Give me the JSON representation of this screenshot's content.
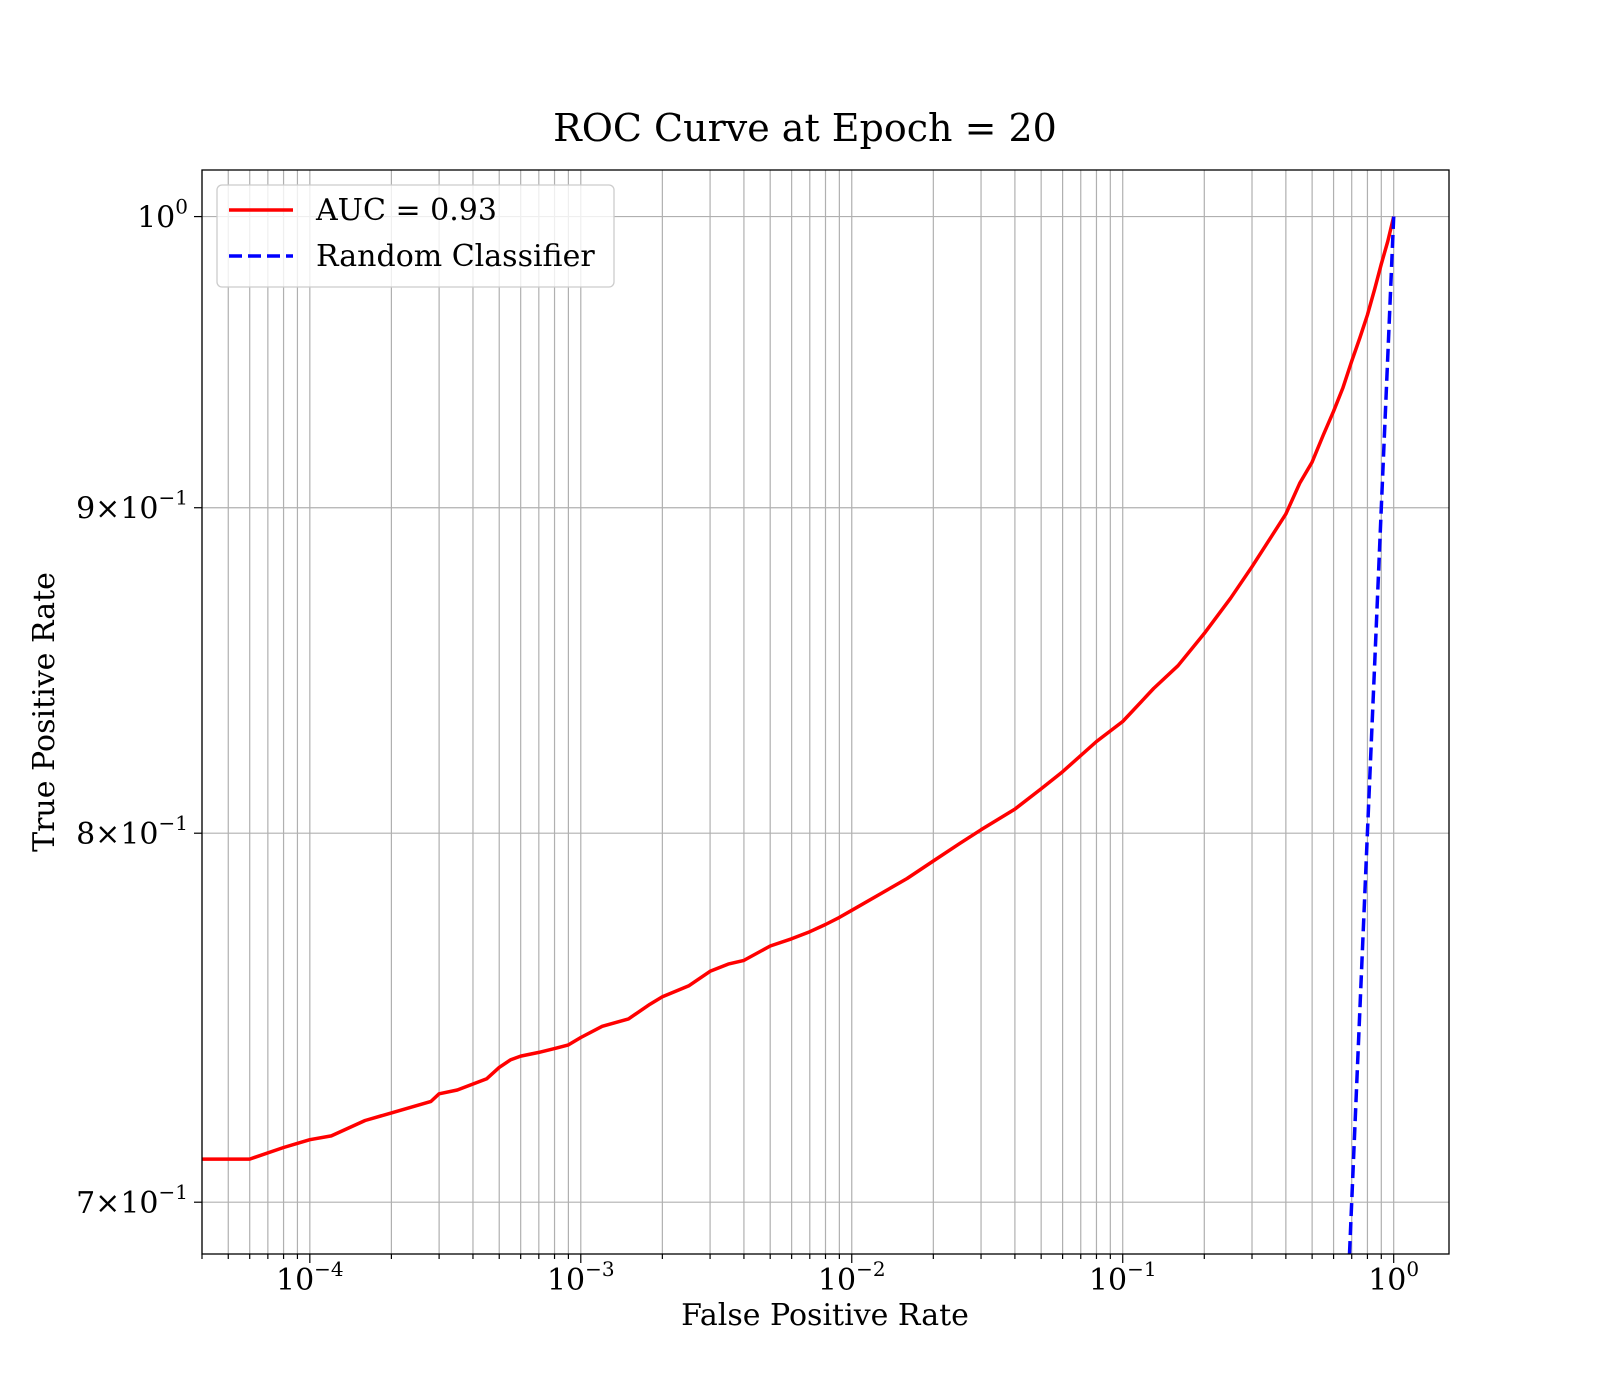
{
  "chart_data": {
    "type": "line",
    "title": "ROC Curve at Epoch = 20",
    "xlabel": "False Positive Rate",
    "ylabel": "True Positive Rate",
    "xscale": "log",
    "yscale": "log",
    "xlim": [
      4e-05,
      1.6
    ],
    "ylim": [
      0.687,
      1.017
    ],
    "grid": "major and minor",
    "legend_position": "upper-left",
    "x_ticks": [
      {
        "base": "10",
        "exp": "−4",
        "value": 0.0001
      },
      {
        "base": "10",
        "exp": "−3",
        "value": 0.001
      },
      {
        "base": "10",
        "exp": "−2",
        "value": 0.01
      },
      {
        "base": "10",
        "exp": "−1",
        "value": 0.1
      },
      {
        "base": "10",
        "exp": "0",
        "value": 1
      }
    ],
    "y_ticks": [
      {
        "mant": "",
        "base": "10",
        "exp": "0",
        "value": 1.0
      },
      {
        "mant": "9",
        "base": "10",
        "exp": "−1",
        "value": 0.9
      },
      {
        "mant": "8",
        "base": "10",
        "exp": "−1",
        "value": 0.8
      },
      {
        "mant": "7",
        "base": "10",
        "exp": "−1",
        "value": 0.7
      }
    ],
    "series": [
      {
        "name": "AUC = 0.93",
        "color": "#ff0000",
        "style": "solid",
        "x": [
          4e-05,
          6e-05,
          8e-05,
          0.0001,
          0.00012,
          0.00016,
          0.0002,
          0.00028,
          0.0003,
          0.00035,
          0.00045,
          0.0005,
          0.00055,
          0.0006,
          0.0007,
          0.0008,
          0.0009,
          0.001,
          0.0012,
          0.0015,
          0.0018,
          0.002,
          0.0025,
          0.003,
          0.0035,
          0.004,
          0.005,
          0.006,
          0.007,
          0.008,
          0.009,
          0.01,
          0.013,
          0.016,
          0.02,
          0.025,
          0.03,
          0.04,
          0.05,
          0.06,
          0.08,
          0.1,
          0.13,
          0.16,
          0.2,
          0.25,
          0.3,
          0.35,
          0.4,
          0.45,
          0.5,
          0.55,
          0.6,
          0.65,
          0.7,
          0.75,
          0.8,
          0.85,
          0.9,
          0.95,
          1.0
        ],
        "y": [
          0.711,
          0.711,
          0.714,
          0.716,
          0.717,
          0.721,
          0.723,
          0.726,
          0.728,
          0.729,
          0.732,
          0.735,
          0.737,
          0.738,
          0.739,
          0.74,
          0.741,
          0.743,
          0.746,
          0.748,
          0.752,
          0.754,
          0.757,
          0.761,
          0.763,
          0.764,
          0.768,
          0.77,
          0.772,
          0.774,
          0.776,
          0.778,
          0.783,
          0.787,
          0.792,
          0.797,
          0.801,
          0.807,
          0.813,
          0.818,
          0.827,
          0.833,
          0.843,
          0.85,
          0.86,
          0.871,
          0.881,
          0.89,
          0.898,
          0.908,
          0.915,
          0.924,
          0.932,
          0.94,
          0.949,
          0.957,
          0.965,
          0.974,
          0.983,
          0.991,
          1.0
        ]
      },
      {
        "name": "Random Classifier",
        "color": "#0000ff",
        "style": "dashed",
        "x": [
          0.687,
          0.75,
          0.8,
          0.85,
          0.9,
          0.95,
          1.0
        ],
        "y": [
          0.687,
          0.75,
          0.8,
          0.85,
          0.9,
          0.95,
          1.0
        ]
      }
    ]
  }
}
